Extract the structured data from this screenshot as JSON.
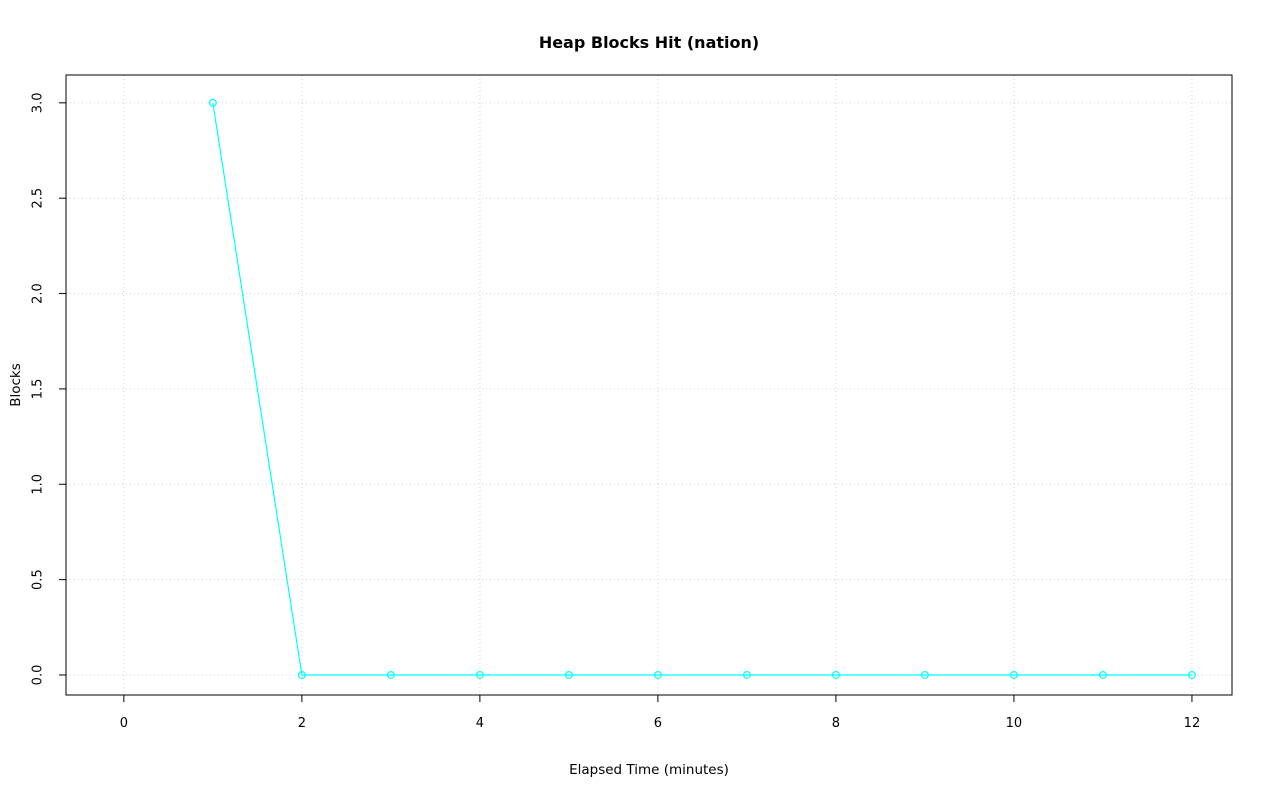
{
  "chart_data": {
    "type": "line",
    "title": "Heap Blocks Hit (nation)",
    "xlabel": "Elapsed Time (minutes)",
    "ylabel": "Blocks",
    "x": [
      1,
      2,
      3,
      4,
      5,
      6,
      7,
      8,
      9,
      10,
      11,
      12
    ],
    "y": [
      3,
      0,
      0,
      0,
      0,
      0,
      0,
      0,
      0,
      0,
      0,
      0
    ],
    "series": [
      {
        "name": "nation",
        "x": [
          1,
          2,
          3,
          4,
          5,
          6,
          7,
          8,
          9,
          10,
          11,
          12
        ],
        "y": [
          3,
          0,
          0,
          0,
          0,
          0,
          0,
          0,
          0,
          0,
          0,
          0
        ]
      }
    ],
    "xticks": [
      0,
      2,
      4,
      6,
      8,
      10,
      12
    ],
    "xtick_labels": [
      "0",
      "2",
      "4",
      "6",
      "8",
      "10",
      "12"
    ],
    "yticks": [
      0.0,
      0.5,
      1.0,
      1.5,
      2.0,
      2.5,
      3.0
    ],
    "ytick_labels": [
      "0.0",
      "0.5",
      "1.0",
      "1.5",
      "2.0",
      "2.5",
      "3.0"
    ],
    "xlim": [
      -0.65,
      12.45
    ],
    "ylim": [
      -0.105,
      3.146
    ],
    "grid": true,
    "grid_style": "dotted",
    "grid_color": "#d3d3d3",
    "line_color": "#00ffff",
    "marker": "circle-open",
    "marker_color": "#00ffff",
    "box_color": "#000000",
    "background": "#ffffff",
    "legend": "none"
  }
}
